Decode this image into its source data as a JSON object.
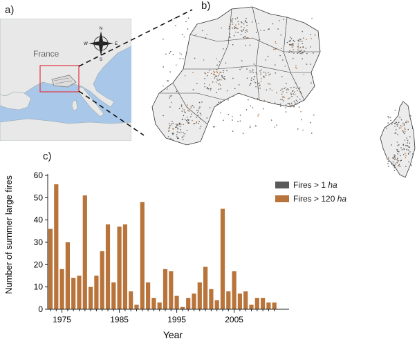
{
  "panels": {
    "a": "a)",
    "b": "b)",
    "c": "c)"
  },
  "map_a": {
    "country_label": "France",
    "compass": {
      "n": "N",
      "s": "S",
      "e": "E",
      "w": "W"
    }
  },
  "colors": {
    "sea": "#a9c7e8",
    "land": "#e8e8e8",
    "highlight_box": "#e0404a",
    "bar": "#b8743a",
    "fires_small": "#5a5a5a",
    "region_fill": "#ececec"
  },
  "legend": {
    "items": [
      {
        "prefix": "Fires > 1 ",
        "unit": "ha",
        "color": "#5a5a5a"
      },
      {
        "prefix": "Fires > 120 ",
        "unit": "ha",
        "color": "#b8743a"
      }
    ]
  },
  "chart_data": {
    "type": "bar",
    "xlabel": "Year",
    "ylabel": "Number of summer large fires",
    "ylim": [
      0,
      60
    ],
    "yticks": [
      0,
      10,
      20,
      30,
      40,
      50,
      60
    ],
    "xticks": [
      1975,
      1985,
      1995,
      2005
    ],
    "categories": [
      1973,
      1974,
      1975,
      1976,
      1977,
      1978,
      1979,
      1980,
      1981,
      1982,
      1983,
      1984,
      1985,
      1986,
      1987,
      1988,
      1989,
      1990,
      1991,
      1992,
      1993,
      1994,
      1995,
      1996,
      1997,
      1998,
      1999,
      2000,
      2001,
      2002,
      2003,
      2004,
      2005,
      2006,
      2007,
      2008,
      2009,
      2010,
      2011,
      2012
    ],
    "series": [
      {
        "name": "Fires > 120 ha",
        "values": [
          36,
          56,
          18,
          30,
          14,
          15,
          51,
          10,
          15,
          26,
          38,
          12,
          37,
          38,
          8,
          2,
          48,
          12,
          5,
          3,
          18,
          17,
          6,
          1,
          5,
          7,
          12,
          19,
          9,
          4,
          45,
          8,
          17,
          7,
          8,
          2,
          5,
          5,
          3,
          3
        ]
      }
    ],
    "legend_position": "right"
  }
}
